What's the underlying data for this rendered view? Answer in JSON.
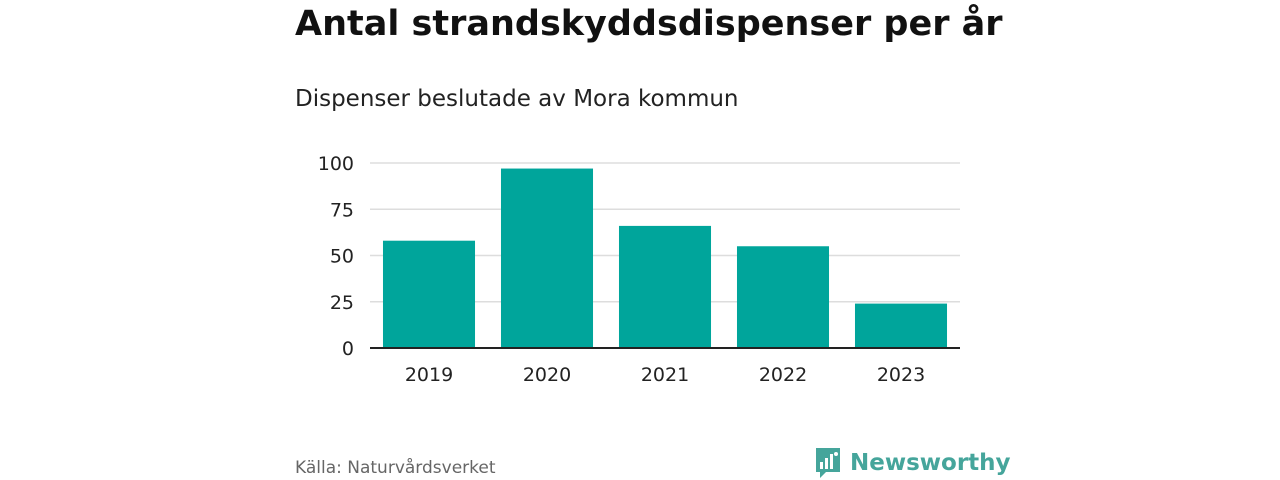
{
  "header": {
    "title": "Antal strandskyddsdispenser per år",
    "subtitle": "Dispenser beslutade av Mora kommun"
  },
  "footer": {
    "source": "Källa: Naturvårdsverket",
    "brand": "Newsworthy"
  },
  "colors": {
    "bar": "#00a59b",
    "brand": "#45a59b",
    "grid": "#dddddd",
    "axis": "#222222"
  },
  "chart_data": {
    "type": "bar",
    "title": "Antal strandskyddsdispenser per år",
    "subtitle": "Dispenser beslutade av Mora kommun",
    "categories": [
      "2019",
      "2020",
      "2021",
      "2022",
      "2023"
    ],
    "values": [
      58,
      97,
      66,
      55,
      24
    ],
    "yticks": [
      0,
      25,
      50,
      75,
      100
    ],
    "ylim": [
      0,
      100
    ],
    "xlabel": "",
    "ylabel": "",
    "grid": true
  }
}
